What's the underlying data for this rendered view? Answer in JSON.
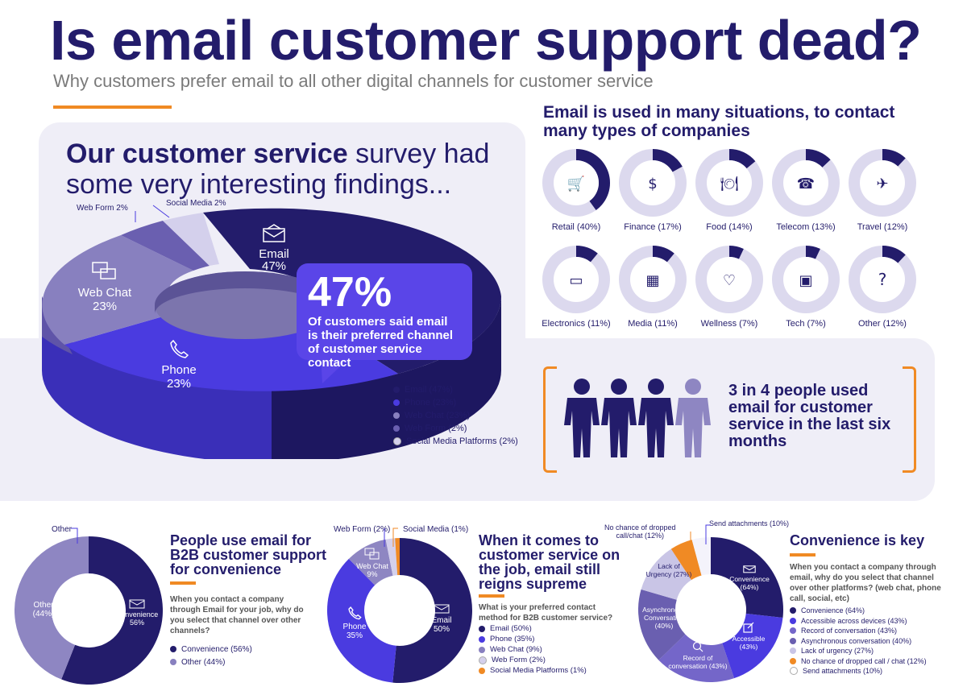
{
  "header": {
    "title": "Is email customer support dead?",
    "subtitle": "Why customers prefer email to all other digital channels for customer service"
  },
  "survey": {
    "heading_bold": "Our customer service",
    "heading_rest": " survey had some very interesting findings...",
    "callout_big": "47%",
    "callout_text": "Of customers said email is their preferred channel of customer service contact"
  },
  "situations": {
    "heading": "Email is used in many situations, to contact many types of companies",
    "items": [
      {
        "label": "Retail (40%)",
        "value": 40,
        "icon": "cart-icon"
      },
      {
        "label": "Finance (17%)",
        "value": 17,
        "icon": "money-bag-icon"
      },
      {
        "label": "Food (14%)",
        "value": 14,
        "icon": "plate-icon"
      },
      {
        "label": "Telecom (13%)",
        "value": 13,
        "icon": "phone-24-7-icon"
      },
      {
        "label": "Travel (12%)",
        "value": 12,
        "icon": "plane-icon"
      },
      {
        "label": "Electronics (11%)",
        "value": 11,
        "icon": "laptop-icon"
      },
      {
        "label": "Media (11%)",
        "value": 11,
        "icon": "film-icon"
      },
      {
        "label": "Wellness (7%)",
        "value": 7,
        "icon": "stethoscope-icon"
      },
      {
        "label": "Tech (7%)",
        "value": 7,
        "icon": "monitor-chart-icon"
      },
      {
        "label": "Other (12%)",
        "value": 12,
        "icon": "question-icon"
      }
    ]
  },
  "stat": {
    "text": "3 in 4 people used email for customer service in the last six months",
    "people_highlighted": 3,
    "people_total": 4
  },
  "b2b": {
    "title": "People use email for B2B customer support for convenience",
    "question": "When you contact a company through Email for your job, why do you select that channel over other channels?"
  },
  "job": {
    "title": "When it comes to customer service on the job, email still reigns supreme",
    "question": "What is your preferred contact method for B2B customer service?"
  },
  "convenience": {
    "title": "Convenience is key",
    "question": "When you contact a company through email, why do you select that channel over other platforms? (web chat, phone call, social, etc)"
  },
  "colors": {
    "navy": "#231c6b",
    "blue": "#4a3be0",
    "violet": "#7466c9",
    "lavender": "#8e86c2",
    "light": "#c9c5e6",
    "orange": "#f08a24",
    "ring_bg": "#dcd9ee"
  },
  "chart_data": [
    {
      "type": "pie",
      "id": "survey",
      "categories": [
        "Email",
        "Phone",
        "Web Chat",
        "Web Form",
        "Social Media"
      ],
      "values": [
        47,
        23,
        23,
        2,
        2
      ],
      "inner_labels": [
        "Email 47%",
        "Phone 23%",
        "Web Chat 23%"
      ],
      "outer_labels": {
        "web_form": "Web Form 2%",
        "social": "Social Media 2%"
      },
      "legend": [
        "Email (47%)",
        "Phone (23%)",
        "Web Chat (23%)",
        "Web Form (2%)",
        "Social Media Platforms (2%)"
      ]
    },
    {
      "type": "pie",
      "id": "b2b",
      "categories": [
        "Convenience",
        "Other"
      ],
      "values": [
        56,
        44
      ],
      "labels": {
        "convenience": "Convenience",
        "convenience_pct": "56%",
        "other": "Other",
        "other_pct": "(44%)",
        "other_callout": "Other"
      },
      "legend": [
        "Convenience (56%)",
        "Other (44%)"
      ]
    },
    {
      "type": "pie",
      "id": "job",
      "categories": [
        "Email",
        "Phone",
        "Web Chat",
        "Web Form",
        "Social Media Platforms"
      ],
      "values": [
        50,
        35,
        9,
        2,
        1
      ],
      "labels": {
        "email": "Email",
        "email_pct": "50%",
        "phone": "Phone",
        "phone_pct": "35%",
        "chat": "Web Chat",
        "chat_pct": "9%",
        "form_callout": "Web Form (2%)",
        "social_callout": "Social Media (1%)"
      },
      "legend": [
        "Email (50%)",
        "Phone (35%)",
        "Web Chat (9%)",
        "Web Form (2%)",
        "Social Media Platforms (1%)"
      ]
    },
    {
      "type": "pie",
      "id": "convenience",
      "categories": [
        "Convenience",
        "Accessible across devices",
        "Record of conversation",
        "Asynchronous conversation",
        "Lack of urgency",
        "No chance of dropped call / chat",
        "Send attachments"
      ],
      "values": [
        64,
        43,
        43,
        40,
        27,
        12,
        10
      ],
      "labels": {
        "conv": "Convenience",
        "conv_pct": "(64%)",
        "acc": "Accessible",
        "acc_pct": "(43%)",
        "rec": "Record of",
        "rec2": "conversation (43%)",
        "async": "Asynchronous",
        "async2": "Conversation",
        "async_pct": "(40%)",
        "lack": "Lack of",
        "lack2": "Urgency (27%)",
        "drop_callout1": "No chance of dropped",
        "drop_callout2": "call/chat (12%)",
        "attach_callout": "Send attachments (10%)"
      },
      "legend": [
        "Convenience (64%)",
        "Accessible across devices (43%)",
        "Record of conversation (43%)",
        "Asynchronous conversation (40%)",
        "Lack of urgency (27%)",
        "No chance of dropped call / chat (12%)",
        "Send attachments  (10%)"
      ]
    }
  ]
}
